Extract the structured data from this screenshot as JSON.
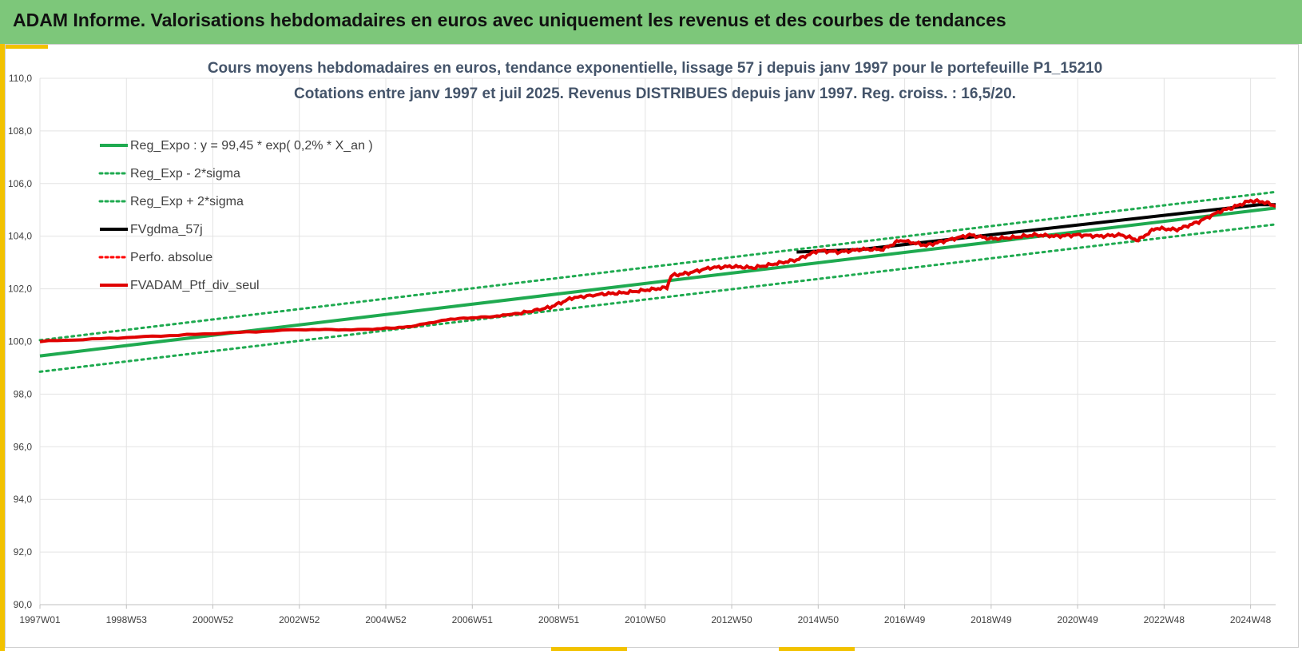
{
  "header": {
    "title": "ADAM Informe. Valorisations hebdomadaires en euros avec uniquement les revenus et des courbes de tendances"
  },
  "chart_data": {
    "type": "line",
    "title_lines": [
      "Cours moyens hebdomadaires  en euros, tendance exponentielle, lissage 57 j depuis janv 1997 pour le portefeuille P1_15210",
      "Cotations  entre janv 1997 et juil 2025. Revenus DISTRIBUES depuis janv 1997. Reg. croiss. : 16,5/20."
    ],
    "x_range": [
      1997.0,
      2025.58
    ],
    "x_ticks": [
      {
        "label": "1997W01",
        "x": 1997.0
      },
      {
        "label": "1998W53",
        "x": 1999.0
      },
      {
        "label": "2000W52",
        "x": 2001.0
      },
      {
        "label": "2002W52",
        "x": 2003.0
      },
      {
        "label": "2004W52",
        "x": 2005.0
      },
      {
        "label": "2006W51",
        "x": 2007.0
      },
      {
        "label": "2008W51",
        "x": 2009.0
      },
      {
        "label": "2010W50",
        "x": 2011.0
      },
      {
        "label": "2012W50",
        "x": 2013.0
      },
      {
        "label": "2014W50",
        "x": 2015.0
      },
      {
        "label": "2016W49",
        "x": 2017.0
      },
      {
        "label": "2018W49",
        "x": 2019.0
      },
      {
        "label": "2020W49",
        "x": 2021.0
      },
      {
        "label": "2022W48",
        "x": 2023.0
      },
      {
        "label": "2024W48",
        "x": 2025.0
      }
    ],
    "ylim": [
      90,
      110
    ],
    "y_ticks": [
      "90,0",
      "92,0",
      "94,0",
      "96,0",
      "98,0",
      "100,0",
      "102,0",
      "104,0",
      "106,0",
      "108,0",
      "110,0"
    ],
    "grid": true,
    "legend_position": "top-left",
    "series": [
      {
        "name": "Reg_Expo : y = 99,45 * exp( 0,2% *  X_an )",
        "color": "#1faa50",
        "style": "solid",
        "points": [
          [
            1997.0,
            99.45
          ],
          [
            2025.58,
            105.07
          ]
        ]
      },
      {
        "name": "Reg_Exp - 2*sigma",
        "color": "#1faa50",
        "style": "dotted",
        "points": [
          [
            1997.0,
            98.85
          ],
          [
            2025.58,
            104.45
          ]
        ]
      },
      {
        "name": "Reg_Exp + 2*sigma",
        "color": "#1faa50",
        "style": "dotted",
        "points": [
          [
            1997.0,
            100.05
          ],
          [
            2025.58,
            105.68
          ]
        ]
      },
      {
        "name": "FVgdma_57j",
        "color": "#000000",
        "style": "solid",
        "points": [
          [
            2014.5,
            103.4
          ],
          [
            2016.0,
            103.5
          ],
          [
            2025.2,
            105.2
          ],
          [
            2025.58,
            105.2
          ]
        ]
      },
      {
        "name": "Perfo. absolue",
        "color": "#ff0000",
        "style": "dotted",
        "points": []
      },
      {
        "name": "FVADAM_Ptf_div_seul",
        "color": "#e00000",
        "style": "solid",
        "points": [
          [
            1997.0,
            100.0
          ],
          [
            1999.0,
            100.15
          ],
          [
            2001.0,
            100.3
          ],
          [
            2003.0,
            100.45
          ],
          [
            2004.5,
            100.45
          ],
          [
            2005.5,
            100.55
          ],
          [
            2006.5,
            100.85
          ],
          [
            2007.5,
            100.95
          ],
          [
            2008.2,
            101.1
          ],
          [
            2008.8,
            101.3
          ],
          [
            2009.3,
            101.65
          ],
          [
            2010.0,
            101.8
          ],
          [
            2010.5,
            101.85
          ],
          [
            2011.0,
            101.95
          ],
          [
            2011.5,
            102.05
          ],
          [
            2011.6,
            102.5
          ],
          [
            2012.0,
            102.6
          ],
          [
            2012.5,
            102.8
          ],
          [
            2013.0,
            102.85
          ],
          [
            2013.5,
            102.8
          ],
          [
            2014.0,
            102.95
          ],
          [
            2014.5,
            103.1
          ],
          [
            2015.0,
            103.45
          ],
          [
            2015.5,
            103.4
          ],
          [
            2016.0,
            103.5
          ],
          [
            2016.5,
            103.5
          ],
          [
            2016.9,
            103.85
          ],
          [
            2017.5,
            103.65
          ],
          [
            2018.0,
            103.85
          ],
          [
            2018.5,
            104.05
          ],
          [
            2019.0,
            103.9
          ],
          [
            2019.5,
            103.95
          ],
          [
            2020.0,
            104.05
          ],
          [
            2020.5,
            104.0
          ],
          [
            2021.0,
            104.05
          ],
          [
            2021.5,
            104.0
          ],
          [
            2022.0,
            104.05
          ],
          [
            2022.4,
            103.85
          ],
          [
            2022.8,
            104.3
          ],
          [
            2023.3,
            104.25
          ],
          [
            2023.8,
            104.55
          ],
          [
            2024.3,
            104.95
          ],
          [
            2024.6,
            105.1
          ],
          [
            2025.0,
            105.35
          ],
          [
            2025.3,
            105.3
          ],
          [
            2025.58,
            105.15
          ]
        ]
      }
    ]
  }
}
